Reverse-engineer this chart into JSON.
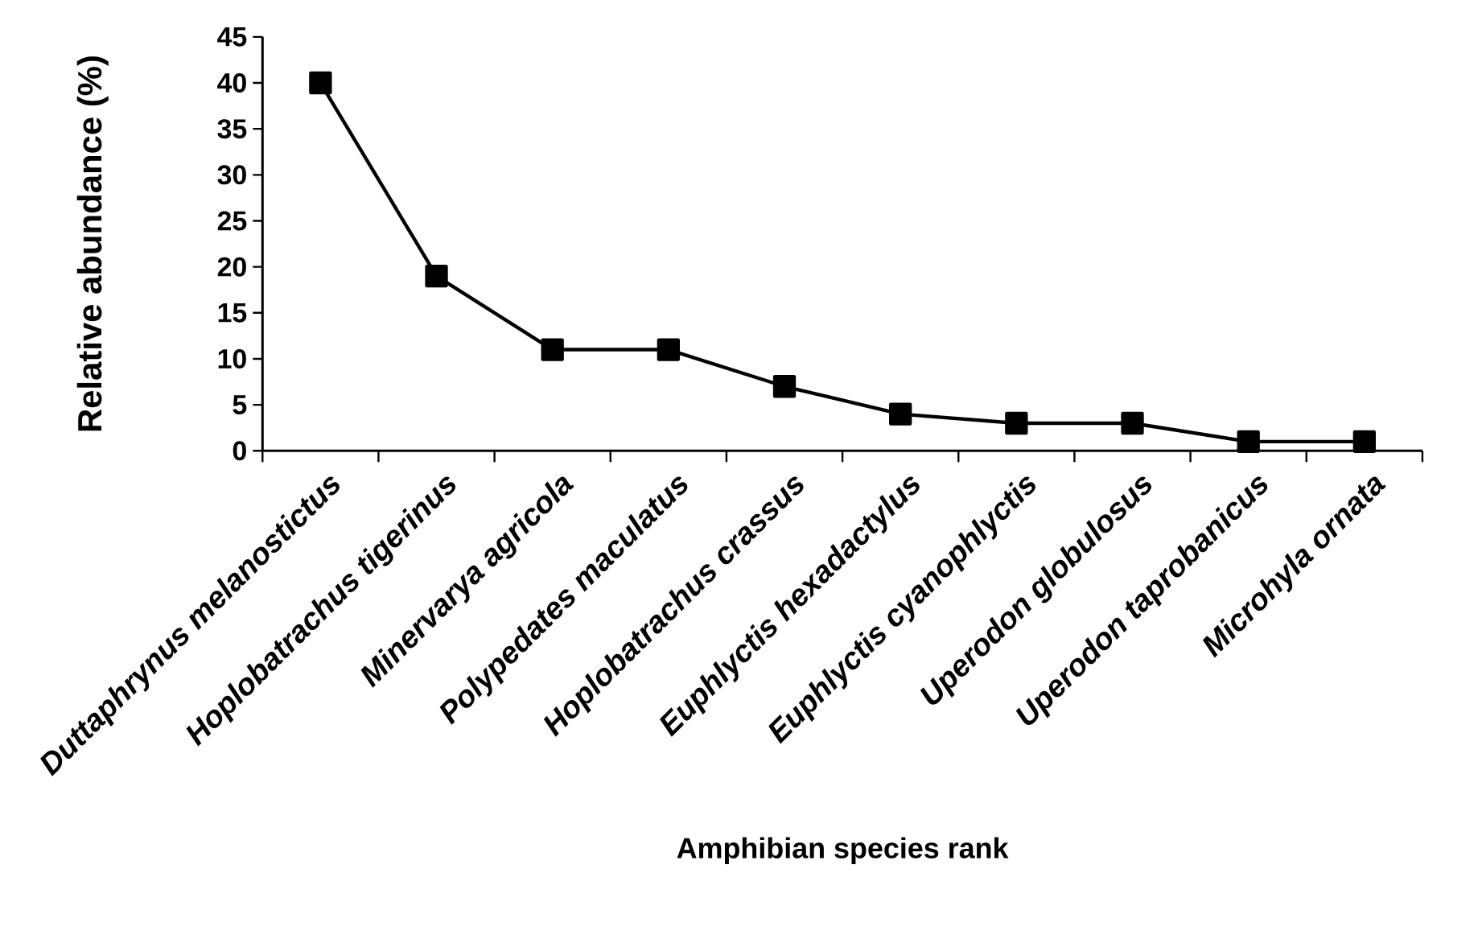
{
  "chart_data": {
    "type": "line",
    "xlabel": "Amphibian species rank",
    "ylabel": "Relative abundance (%)",
    "categories": [
      "Duttaphrynus melanostictus",
      "Hoplobatrachus tigerinus",
      "Minervarya agricola",
      "Polypedates maculatus",
      "Hoplobatrachus crassus",
      "Euphlyctis hexadactylus",
      "Euphlyctis cyanophlyctis",
      "Uperodon globulosus",
      "Uperodon taprobanicus",
      "Microhyla ornata"
    ],
    "values": [
      40,
      19,
      11,
      11,
      7,
      4,
      3,
      3,
      1,
      1
    ],
    "color": "#000000",
    "marker": "square",
    "line_style": "solid",
    "ylim": [
      0,
      45
    ],
    "yticks": [
      0,
      5,
      10,
      15,
      20,
      25,
      30,
      35,
      40,
      45
    ]
  }
}
